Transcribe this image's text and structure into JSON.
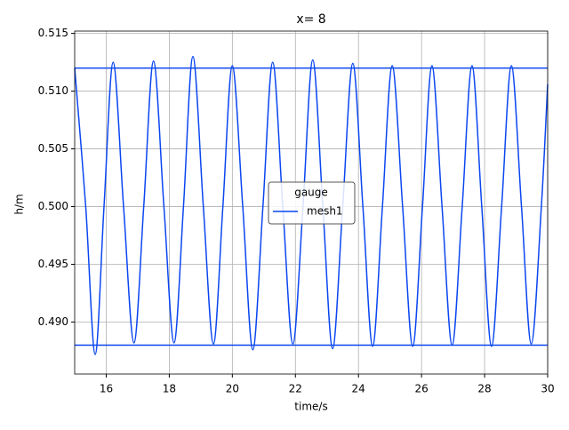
{
  "chart_data": {
    "type": "line",
    "title": "x= 8",
    "xlabel": "time/s",
    "ylabel": "h/m",
    "legend_title": "gauge",
    "legend_position": "center",
    "grid": true,
    "xlim": [
      15,
      30
    ],
    "xticks": [
      16,
      18,
      20,
      22,
      24,
      26,
      28,
      30
    ],
    "ylim": [
      0.4855,
      0.5152
    ],
    "yticks": [
      {
        "value": 0.49,
        "label": "0.490"
      },
      0.495,
      {
        "value": 0.5,
        "label": "0.500"
      },
      0.505,
      {
        "value": 0.51,
        "label": "0.510"
      },
      0.515
    ],
    "hlines": [
      0.512,
      0.488
    ],
    "hline_color": "#0b47f0",
    "x": [
      15.0,
      15.35,
      15.65,
      15.93,
      16.22,
      16.55,
      16.88,
      17.19,
      17.5,
      17.83,
      18.15,
      18.45,
      18.75,
      19.08,
      19.4,
      19.7,
      20.0,
      20.33,
      20.65,
      20.97,
      21.28,
      21.6,
      21.92,
      22.24,
      22.55,
      22.87,
      23.18,
      23.5,
      23.82,
      24.14,
      24.45,
      24.76,
      25.07,
      25.4,
      25.72,
      26.03,
      26.33,
      26.65,
      26.97,
      27.29,
      27.6,
      27.91,
      28.22,
      28.54,
      28.85,
      29.17,
      29.48,
      29.8,
      30.0
    ],
    "series": [
      {
        "name": "mesh1",
        "color": "#0b47f0",
        "values": [
          0.512,
          0.5,
          0.4872,
          0.5,
          0.5125,
          0.5,
          0.4882,
          0.5,
          0.5126,
          0.5,
          0.4882,
          0.5,
          0.513,
          0.5,
          0.4881,
          0.5,
          0.5122,
          0.5,
          0.4876,
          0.5,
          0.5125,
          0.5,
          0.4881,
          0.5,
          0.5127,
          0.5,
          0.4877,
          0.5,
          0.5124,
          0.5,
          0.4879,
          0.5,
          0.5122,
          0.5,
          0.4879,
          0.5,
          0.5122,
          0.5,
          0.488,
          0.5,
          0.5122,
          0.5,
          0.4879,
          0.5,
          0.5122,
          0.5,
          0.4881,
          0.5,
          0.5106
        ]
      }
    ]
  }
}
